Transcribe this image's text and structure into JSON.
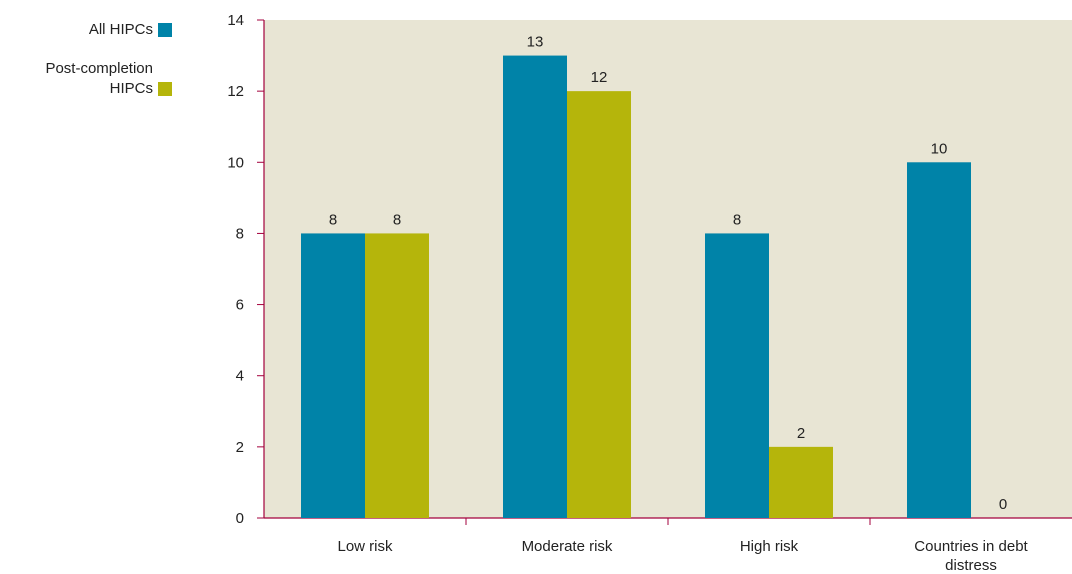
{
  "chart_data": {
    "type": "bar",
    "categories": [
      [
        "Low risk"
      ],
      [
        "Moderate risk"
      ],
      [
        "High risk"
      ],
      [
        "Countries in debt",
        "distress"
      ]
    ],
    "series": [
      {
        "name": "All HIPCs",
        "values": [
          8,
          13,
          8,
          10
        ],
        "color": "#0083a8"
      },
      {
        "name": "Post-completion HIPCs",
        "values": [
          8,
          12,
          2,
          0
        ],
        "color": "#b5b50b"
      }
    ],
    "ylim": [
      0,
      14
    ],
    "yticks": [
      0,
      2,
      4,
      6,
      8,
      10,
      12,
      14
    ],
    "data_labels": true,
    "legend_position": "top-left",
    "title": "",
    "xlabel": "",
    "ylabel": "",
    "plot_background": "#e8e5d4",
    "axis_color": "#a3003c"
  },
  "legend": {
    "items": [
      {
        "label": "All HIPCs",
        "color": "#0083a8"
      },
      {
        "label": "Post-completion HIPCs",
        "color": "#b5b50b"
      }
    ]
  }
}
